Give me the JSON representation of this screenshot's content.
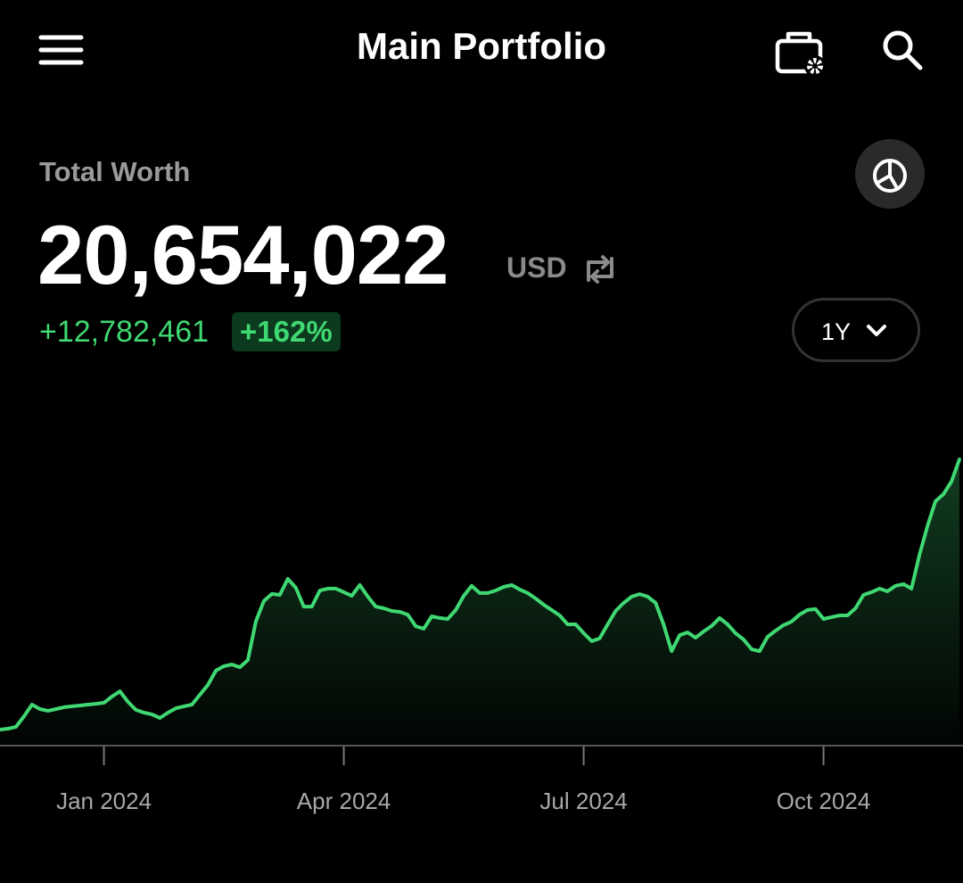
{
  "header": {
    "title": "Main Portfolio"
  },
  "summary": {
    "label": "Total Worth",
    "total": "20,654,022",
    "currency": "USD",
    "change": "+12,782,461",
    "change_percent": "+162%",
    "range": "1Y"
  },
  "chart_data": {
    "type": "line",
    "color": "#3fd872",
    "ylim": [
      7110000,
      23820000
    ],
    "categories": [
      null,
      null,
      null,
      null,
      null,
      null,
      null,
      null,
      null,
      null,
      null,
      null,
      null,
      "Jan 2024",
      null,
      null,
      null,
      null,
      null,
      null,
      null,
      null,
      null,
      null,
      null,
      null,
      null,
      null,
      null,
      null,
      null,
      null,
      null,
      null,
      null,
      null,
      null,
      null,
      null,
      null,
      null,
      null,
      null,
      "Apr 2024",
      null,
      null,
      null,
      null,
      null,
      null,
      null,
      null,
      null,
      null,
      null,
      null,
      null,
      null,
      null,
      null,
      null,
      null,
      null,
      null,
      null,
      null,
      null,
      null,
      null,
      null,
      null,
      null,
      null,
      "Jul 2024",
      null,
      null,
      null,
      null,
      null,
      null,
      null,
      null,
      null,
      null,
      null,
      null,
      null,
      null,
      null,
      null,
      null,
      null,
      null,
      null,
      null,
      null,
      null,
      null,
      null,
      null,
      null,
      null,
      null,
      "Oct 2024",
      null,
      null,
      null,
      null,
      null,
      null,
      null,
      null,
      null,
      null,
      null,
      null,
      null,
      null,
      null,
      null,
      null
    ],
    "values": [
      7871561,
      7910000,
      8000000,
      8500000,
      9050000,
      8840000,
      8760000,
      8840000,
      8930000,
      8970000,
      9010000,
      9050000,
      9090000,
      9140000,
      9430000,
      9680000,
      9180000,
      8800000,
      8670000,
      8590000,
      8420000,
      8670000,
      8880000,
      8970000,
      9050000,
      9520000,
      9980000,
      10660000,
      10870000,
      10950000,
      10820000,
      11160000,
      12980000,
      13950000,
      14290000,
      14240000,
      15000000,
      14580000,
      13690000,
      13690000,
      14450000,
      14540000,
      14540000,
      14370000,
      14200000,
      14710000,
      14160000,
      13690000,
      13610000,
      13480000,
      13440000,
      13310000,
      12760000,
      12640000,
      13230000,
      13150000,
      13100000,
      13530000,
      14200000,
      14670000,
      14330000,
      14330000,
      14450000,
      14620000,
      14710000,
      14500000,
      14330000,
      14070000,
      13780000,
      13530000,
      13270000,
      12850000,
      12850000,
      12430000,
      12050000,
      12180000,
      12850000,
      13480000,
      13860000,
      14160000,
      14280000,
      14160000,
      13860000,
      12850000,
      11580000,
      12340000,
      12470000,
      12220000,
      12510000,
      12770000,
      13150000,
      12850000,
      12430000,
      12130000,
      11670000,
      11580000,
      12260000,
      12550000,
      12810000,
      12980000,
      13310000,
      13530000,
      13570000,
      13100000,
      13190000,
      13270000,
      13270000,
      13610000,
      14240000,
      14370000,
      14540000,
      14410000,
      14670000,
      14750000,
      14540000,
      16140000,
      17490000,
      18670000,
      19010000,
      19600000,
      20654022
    ]
  }
}
